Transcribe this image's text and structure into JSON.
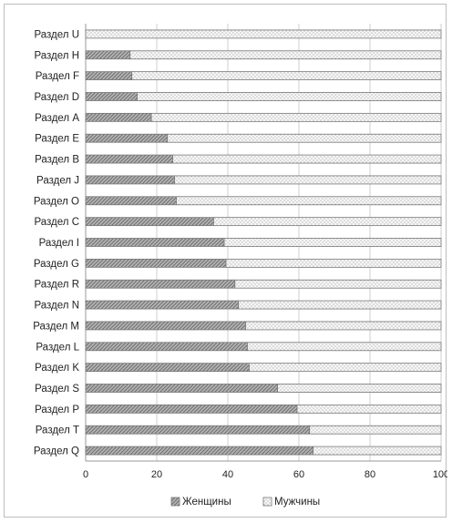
{
  "chart_data": {
    "type": "bar",
    "orientation": "horizontal",
    "stacked": "percent",
    "categories": [
      "Раздел U",
      "Раздел H",
      "Раздел F",
      "Раздел D",
      "Раздел A",
      "Раздел E",
      "Раздел B",
      "Раздел J",
      "Раздел O",
      "Раздел C",
      "Раздел I",
      "Раздел G",
      "Раздел R",
      "Раздел N",
      "Раздел M",
      "Раздел L",
      "Раздел K",
      "Раздел S",
      "Раздел P",
      "Раздел T",
      "Раздел Q"
    ],
    "series": [
      {
        "name": "Женщины",
        "color": "#a8a8a8",
        "pattern": "diagonal-hatch",
        "values": [
          0,
          12.5,
          13,
          14.5,
          18.5,
          23,
          24.5,
          25,
          25.5,
          36,
          39,
          39.5,
          42,
          43,
          45,
          45.5,
          46,
          54,
          59.5,
          63,
          64
        ]
      },
      {
        "name": "Мужчины",
        "color": "#f4f4f4",
        "pattern": "dots",
        "values": [
          100,
          87.5,
          87,
          85.5,
          81.5,
          77,
          75.5,
          75,
          74.5,
          64,
          61,
          60.5,
          58,
          57,
          55,
          54.5,
          54,
          46,
          40.5,
          37,
          36
        ]
      }
    ],
    "xlim": [
      0,
      100
    ],
    "xticks": [
      "0",
      "20",
      "40",
      "60",
      "80",
      "100"
    ],
    "xlabel": "",
    "ylabel": "",
    "title": "",
    "grid": "vertical",
    "legend": "bottom"
  }
}
